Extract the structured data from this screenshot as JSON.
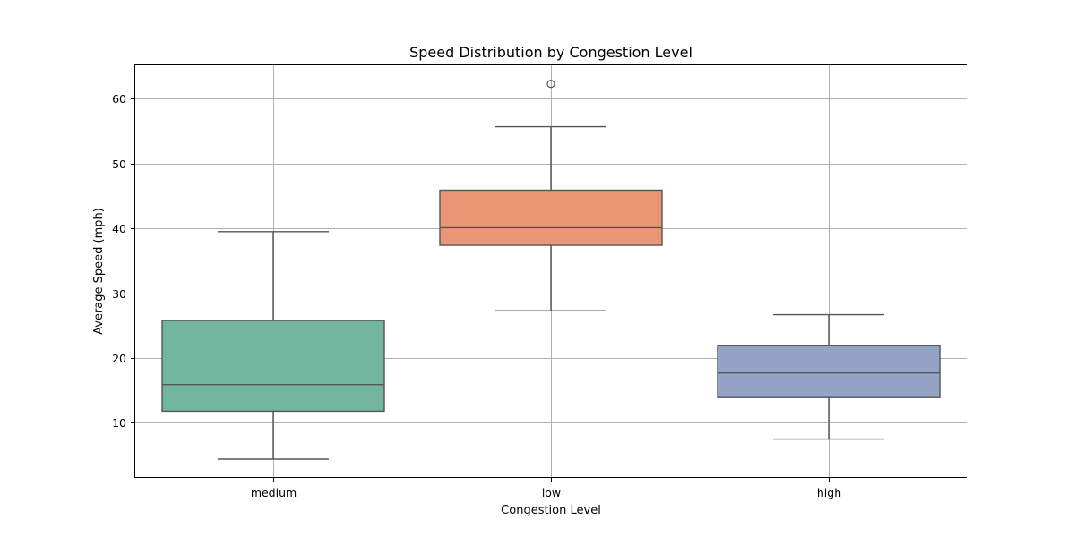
{
  "chart_data": {
    "type": "box",
    "title": "Speed Distribution by Congestion Level",
    "xlabel": "Congestion Level",
    "ylabel": "Average Speed (mph)",
    "categories": [
      "medium",
      "low",
      "high"
    ],
    "ylim": [
      1.5,
      65.3
    ],
    "yticks": [
      10,
      20,
      30,
      40,
      50,
      60
    ],
    "grid": true,
    "boxes": [
      {
        "category": "medium",
        "whisker_low": 4.4,
        "q1": 11.8,
        "median": 15.9,
        "q3": 25.8,
        "whisker_high": 39.5,
        "outliers": [],
        "color": "#73b6a0"
      },
      {
        "category": "low",
        "whisker_low": 27.3,
        "q1": 37.4,
        "median": 40.1,
        "q3": 45.9,
        "whisker_high": 55.7,
        "outliers": [
          62.3
        ],
        "color": "#ea9675"
      },
      {
        "category": "high",
        "whisker_low": 7.5,
        "q1": 13.9,
        "median": 17.7,
        "q3": 21.9,
        "whisker_high": 26.7,
        "outliers": [],
        "color": "#95a3c6"
      }
    ]
  }
}
